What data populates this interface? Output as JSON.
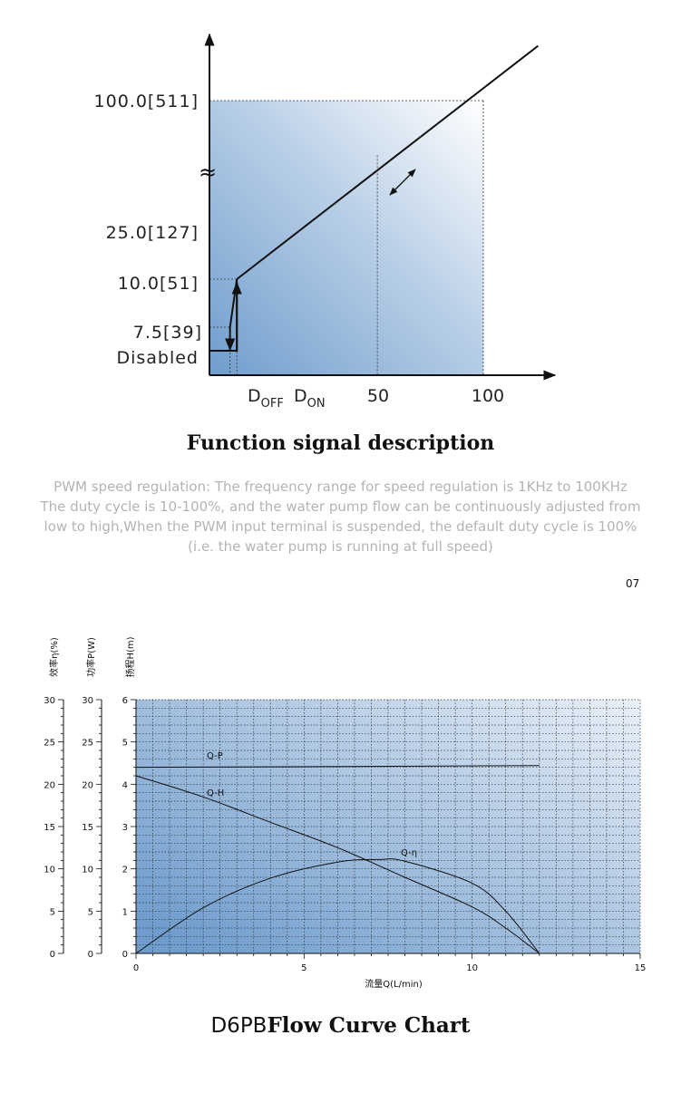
{
  "signal_title": "Function signal description",
  "description": [
    "PWM speed regulation: The frequency range for speed regulation is 1KHz to 100KHz",
    "The duty cycle is 10-100%, and the water pump flow can be continuously adjusted from",
    "low to high,When the PWM input terminal is suspended, the default duty cycle is 100%",
    "(i.e. the water pump is running at full speed)"
  ],
  "page_number": "07",
  "curve_title": {
    "model": "D6PB",
    "name": "Flow Curve Chart"
  },
  "colors": {
    "gradient_dark": "#6f9dcd",
    "gradient_light": "#ffffff",
    "line": "#111111"
  },
  "chart_data": [
    {
      "type": "line",
      "title": "Function signal description",
      "y_tick_labels": [
        "100.0[511]",
        "25.0[127]",
        "10.0[51]",
        "7.5[39]",
        "Disabled"
      ],
      "x_tick_labels": {
        "d_off": "D",
        "d_off_sub": "OFF",
        "d_on": "D",
        "d_on_sub": "ON",
        "t50": "50",
        "t100": "100"
      },
      "axis_break_symbol": "≈",
      "series": [
        {
          "points": [
            [
              0,
              0
            ],
            [
              10,
              0
            ],
            [
              10,
              10
            ],
            [
              100,
              100
            ]
          ]
        },
        {
          "points": [
            [
              7.5,
              7.5
            ],
            [
              7.5,
              0
            ]
          ]
        }
      ]
    },
    {
      "type": "line",
      "xlabel": "流量Q(L/min)",
      "ylabels": [
        "效率η(%)",
        "功率P(W)",
        "扬程H(m)"
      ],
      "x_ticks": [
        0,
        5,
        10,
        15
      ],
      "xlim": [
        0,
        15
      ],
      "y_axes": [
        {
          "label": "效率η(%)",
          "ylim": [
            0,
            30
          ],
          "ticks": [
            0,
            5,
            10,
            15,
            20,
            25,
            30
          ]
        },
        {
          "label": "功率P(W)",
          "ylim": [
            0,
            30
          ],
          "ticks": [
            0,
            5,
            10,
            15,
            20,
            25,
            30
          ]
        },
        {
          "label": "扬程H(m)",
          "ylim": [
            0,
            6
          ],
          "ticks": [
            0,
            1,
            2,
            3,
            4,
            5,
            6
          ]
        }
      ],
      "grid": true,
      "series": [
        {
          "name": "Q-P",
          "axis": "P",
          "x": [
            0,
            12
          ],
          "y": [
            22.0,
            22.2
          ]
        },
        {
          "name": "Q-H",
          "axis": "H",
          "x": [
            0,
            2,
            4,
            6,
            8,
            10,
            11,
            12
          ],
          "y": [
            4.2,
            3.7,
            3.1,
            2.5,
            1.8,
            1.1,
            0.6,
            0
          ]
        },
        {
          "name": "Q-η",
          "axis": "eta",
          "x": [
            0,
            2,
            4,
            6,
            7.2,
            8,
            10,
            11,
            12
          ],
          "y": [
            0,
            5.4,
            8.9,
            10.8,
            11.1,
            10.9,
            8.3,
            5.0,
            0
          ]
        }
      ]
    }
  ]
}
